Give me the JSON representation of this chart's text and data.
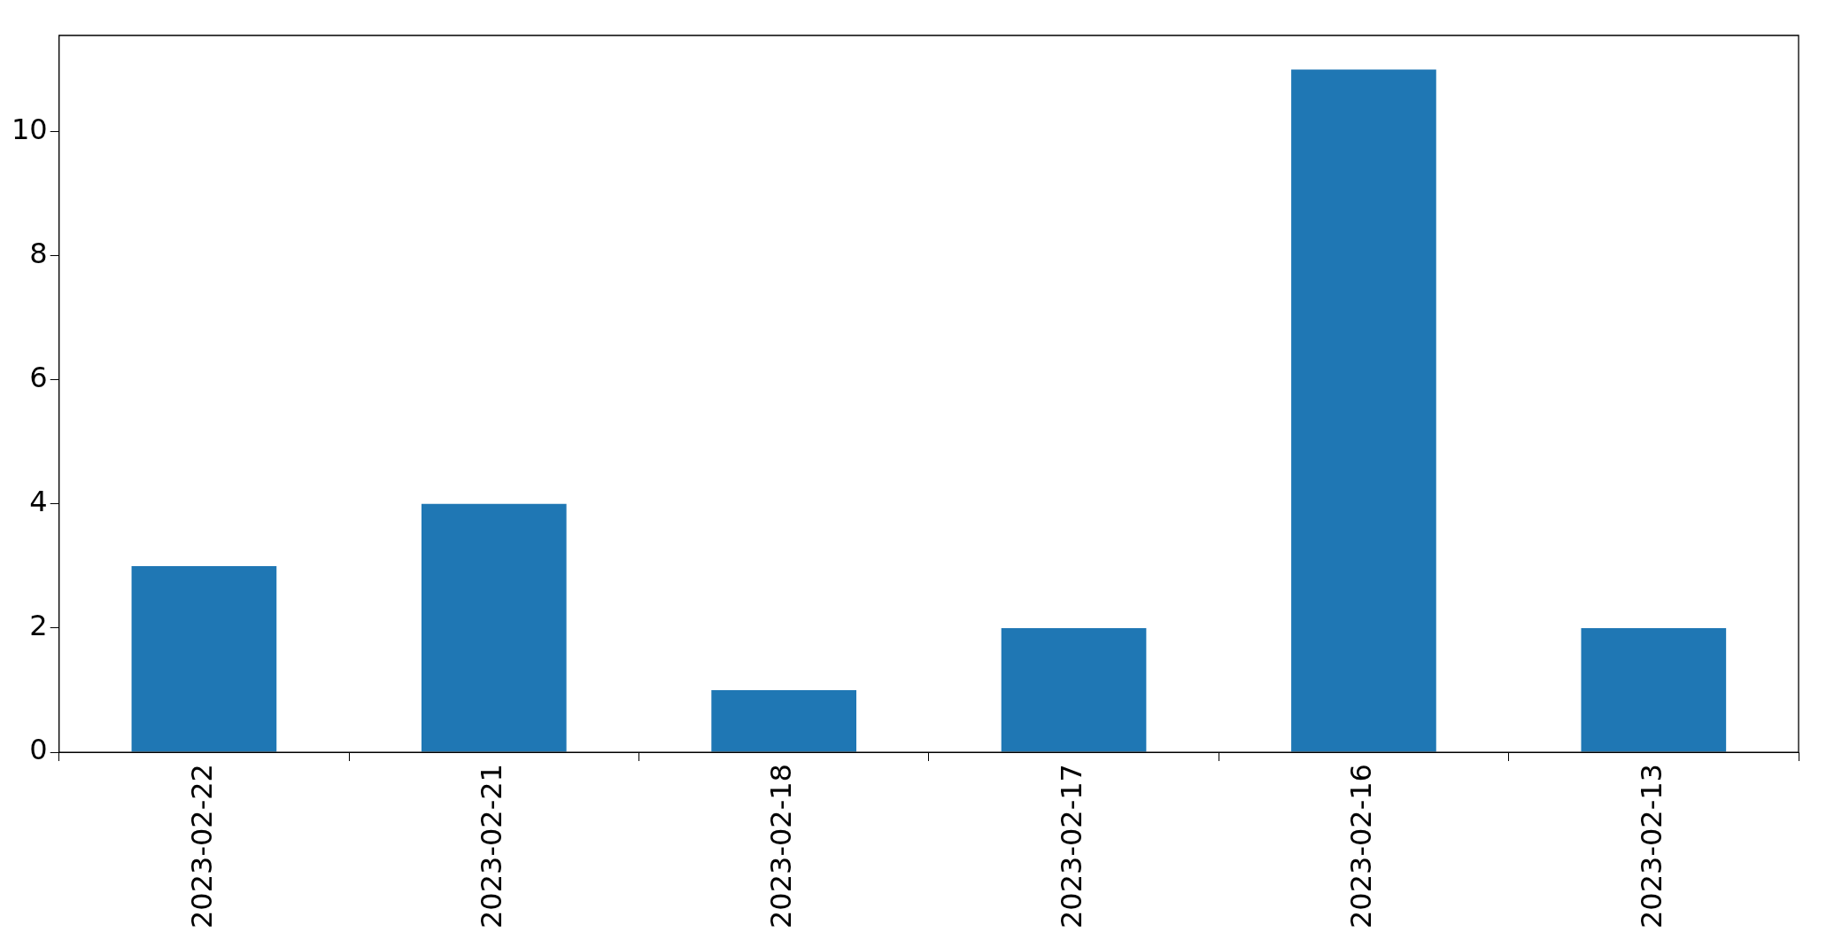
{
  "chart_data": {
    "type": "bar",
    "categories": [
      "2023-02-22",
      "2023-02-21",
      "2023-02-18",
      "2023-02-17",
      "2023-02-16",
      "2023-02-13"
    ],
    "values": [
      3,
      4,
      1,
      2,
      11,
      2
    ],
    "color": "#1f77b4",
    "ylim": [
      0,
      11.55
    ],
    "yticks": [
      0,
      2,
      4,
      6,
      8,
      10
    ],
    "grid": false,
    "legend": false
  }
}
